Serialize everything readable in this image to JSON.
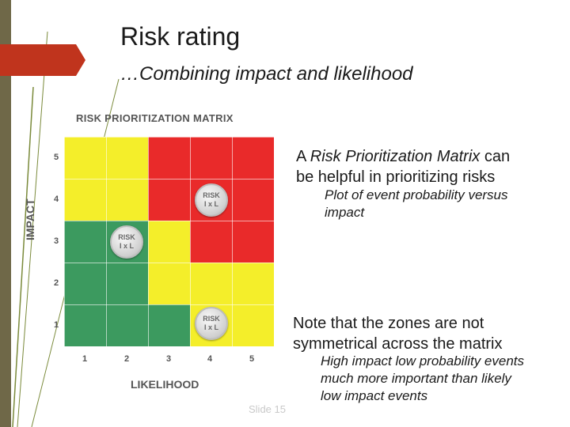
{
  "slide": {
    "title": "Risk rating",
    "subtitle": "…Combining impact and likelihood",
    "slide_number": "Slide 15"
  },
  "matrix": {
    "title": "RISK PRIORITIZATION MATRIX",
    "y_label": "IMPACT",
    "x_label": "LIKELIHOOD",
    "y_ticks": [
      "5",
      "4",
      "3",
      "2",
      "1"
    ],
    "x_ticks": [
      "1",
      "2",
      "3",
      "4",
      "5"
    ],
    "colors": {
      "green": "#3c9a5f",
      "yellow": "#f4ee2a",
      "red": "#e92a2a"
    },
    "cells": [
      [
        "yellow",
        "yellow",
        "red",
        "red",
        "red"
      ],
      [
        "yellow",
        "yellow",
        "red",
        "red",
        "red"
      ],
      [
        "green",
        "green",
        "yellow",
        "red",
        "red"
      ],
      [
        "green",
        "green",
        "yellow",
        "yellow",
        "yellow"
      ],
      [
        "green",
        "green",
        "green",
        "yellow",
        "yellow"
      ]
    ],
    "badge_line1": "RISK",
    "badge_line2": "I x L"
  },
  "text": {
    "bullet1_line1_pre": "A ",
    "bullet1_line1_italic": "Risk Prioritization Matrix",
    "bullet1_line1_post": " can",
    "bullet1_line2": "be helpful in prioritizing risks",
    "sub1_line1": "Plot of event probability versus",
    "sub1_line2": "impact",
    "bullet2_line1": "Note that the zones are not",
    "bullet2_line2": "symmetrical across the matrix",
    "sub2_line1": "High impact low probability events",
    "sub2_line2": "much more important than likely",
    "sub2_line3": "low impact events"
  }
}
